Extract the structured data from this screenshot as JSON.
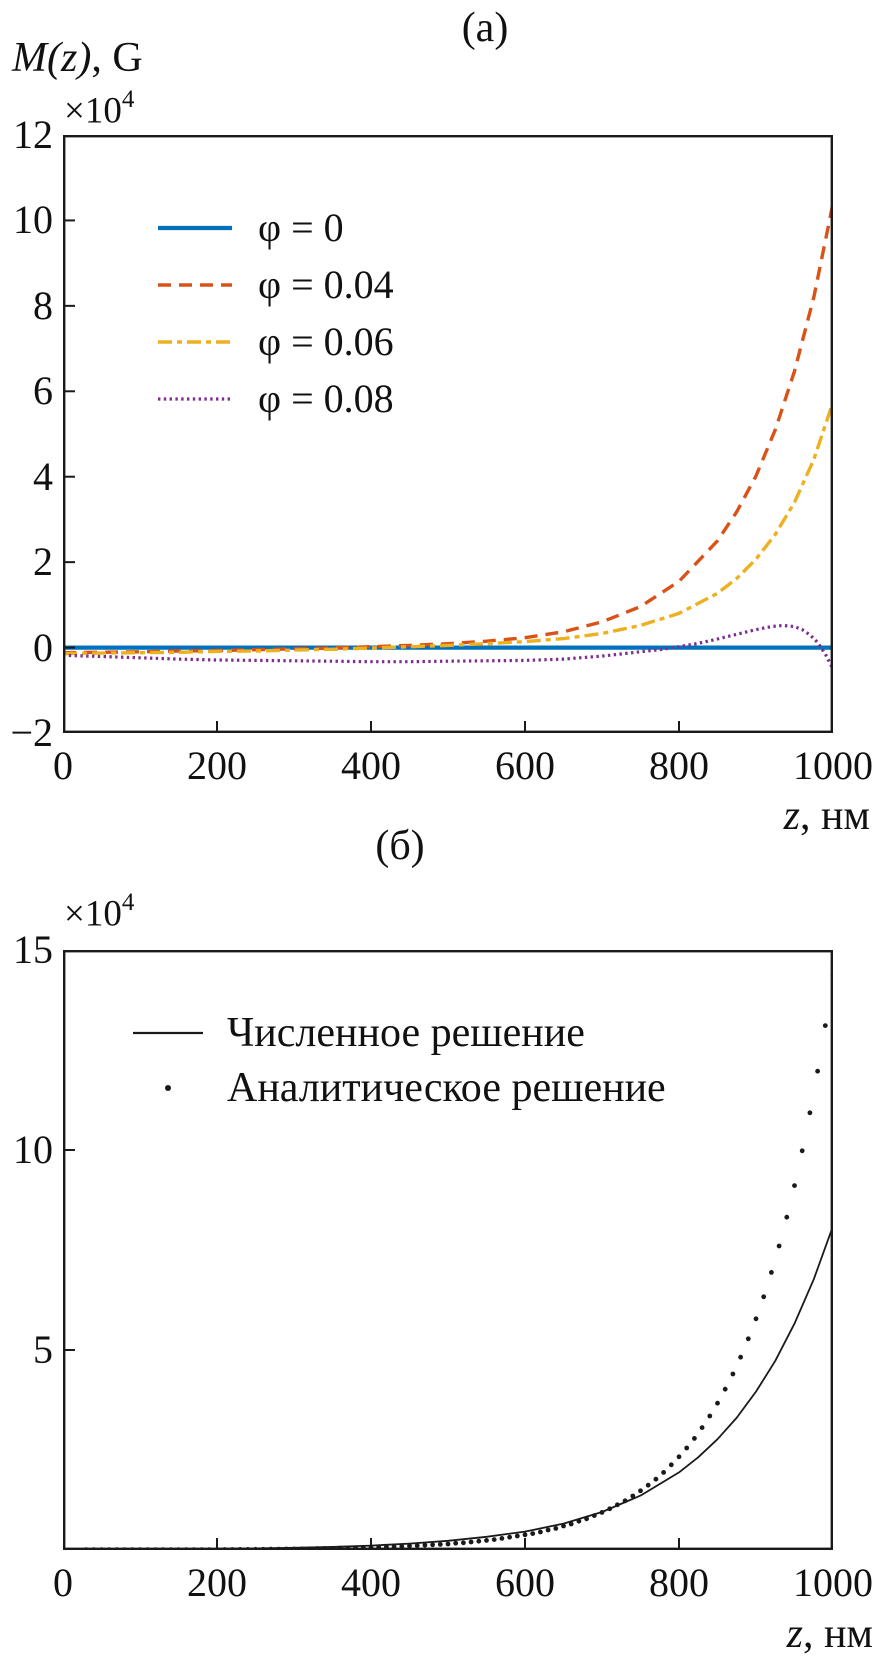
{
  "chart_data": [
    {
      "type": "line",
      "panel": "a",
      "title": "(a)",
      "ylabel": "M(z), G",
      "xlabel": "z, нм",
      "scale_label": "×10⁴",
      "labels": {
        "ylabel_var": "M(z)",
        "ylabel_unit": ", G",
        "xlabel_var": "z",
        "xlabel_unit": ", нм",
        "scale_base": "×10",
        "scale_exp": "4"
      },
      "xlim": [
        0,
        1000
      ],
      "ylim": [
        -2,
        12
      ],
      "xticks": [
        0,
        200,
        400,
        600,
        800,
        1000
      ],
      "yticks": [
        12,
        10,
        8,
        6,
        4,
        2,
        0,
        -2
      ],
      "grid": false,
      "legend_position": "upper left inside",
      "series": [
        {
          "name": "φ = 0",
          "color": "#0072BD",
          "line_style": "solid",
          "line_width": 4.2,
          "points": [
            [
              0,
              0
            ],
            [
              1000,
              0
            ]
          ]
        },
        {
          "name": "φ = 0.04",
          "color": "#D95319",
          "line_style": "dashed",
          "line_width": 3.4,
          "points": [
            [
              0,
              -0.12
            ],
            [
              50,
              -0.11
            ],
            [
              100,
              -0.1
            ],
            [
              150,
              -0.08
            ],
            [
              200,
              -0.07
            ],
            [
              250,
              -0.05
            ],
            [
              300,
              -0.03
            ],
            [
              350,
              -0.01
            ],
            [
              400,
              0.02
            ],
            [
              450,
              0.05
            ],
            [
              500,
              0.09
            ],
            [
              550,
              0.15
            ],
            [
              600,
              0.23
            ],
            [
              650,
              0.37
            ],
            [
              700,
              0.6
            ],
            [
              750,
              0.96
            ],
            [
              800,
              1.55
            ],
            [
              850,
              2.5
            ],
            [
              875,
              3.18
            ],
            [
              900,
              4.02
            ],
            [
              925,
              5.1
            ],
            [
              950,
              6.47
            ],
            [
              975,
              8.2
            ],
            [
              1000,
              10.4
            ]
          ]
        },
        {
          "name": "φ = 0.06",
          "color": "#EDB120",
          "line_style": "dashdot",
          "line_width": 3.4,
          "points": [
            [
              0,
              -0.14
            ],
            [
              50,
              -0.13
            ],
            [
              100,
              -0.12
            ],
            [
              150,
              -0.11
            ],
            [
              200,
              -0.09
            ],
            [
              250,
              -0.08
            ],
            [
              300,
              -0.06
            ],
            [
              350,
              -0.04
            ],
            [
              400,
              -0.01
            ],
            [
              450,
              0.02
            ],
            [
              500,
              0.05
            ],
            [
              550,
              0.09
            ],
            [
              600,
              0.14
            ],
            [
              650,
              0.21
            ],
            [
              700,
              0.33
            ],
            [
              750,
              0.52
            ],
            [
              800,
              0.8
            ],
            [
              850,
              1.27
            ],
            [
              875,
              1.62
            ],
            [
              900,
              2.07
            ],
            [
              925,
              2.65
            ],
            [
              950,
              3.4
            ],
            [
              975,
              4.4
            ],
            [
              1000,
              5.75
            ]
          ]
        },
        {
          "name": "φ = 0.08",
          "color": "#7E2F8E",
          "line_style": "dotted",
          "line_width": 3.2,
          "points": [
            [
              0,
              -0.18
            ],
            [
              50,
              -0.21
            ],
            [
              100,
              -0.24
            ],
            [
              150,
              -0.27
            ],
            [
              200,
              -0.29
            ],
            [
              250,
              -0.3
            ],
            [
              300,
              -0.31
            ],
            [
              350,
              -0.32
            ],
            [
              400,
              -0.33
            ],
            [
              450,
              -0.33
            ],
            [
              500,
              -0.32
            ],
            [
              550,
              -0.31
            ],
            [
              600,
              -0.3
            ],
            [
              650,
              -0.27
            ],
            [
              700,
              -0.2
            ],
            [
              750,
              -0.1
            ],
            [
              775,
              -0.05
            ],
            [
              800,
              0.02
            ],
            [
              825,
              0.1
            ],
            [
              850,
              0.2
            ],
            [
              875,
              0.31
            ],
            [
              900,
              0.42
            ],
            [
              920,
              0.49
            ],
            [
              935,
              0.52
            ],
            [
              950,
              0.49
            ],
            [
              960,
              0.42
            ],
            [
              970,
              0.3
            ],
            [
              980,
              0.12
            ],
            [
              990,
              -0.15
            ],
            [
              1000,
              -0.5
            ]
          ]
        }
      ]
    },
    {
      "type": "line+scatter",
      "panel": "б",
      "title": "(б)",
      "ylabel": "",
      "xlabel": "z, нм",
      "scale_label": "×10⁴",
      "labels": {
        "xlabel_var": "z",
        "xlabel_unit": ", нм",
        "scale_base": "×10",
        "scale_exp": "4"
      },
      "xlim": [
        0,
        1000
      ],
      "ylim": [
        0,
        15
      ],
      "xticks": [
        0,
        200,
        400,
        600,
        800,
        1000
      ],
      "yticks": [
        15,
        10,
        5
      ],
      "grid": false,
      "legend_position": "upper left inside",
      "series": [
        {
          "name": "Численное решение",
          "color": "#1a1a1a",
          "line_style": "solid",
          "line_width": 1.8,
          "points": [
            [
              0,
              0.006
            ],
            [
              50,
              0.009
            ],
            [
              100,
              0.013
            ],
            [
              150,
              0.019
            ],
            [
              200,
              0.027
            ],
            [
              250,
              0.039
            ],
            [
              300,
              0.055
            ],
            [
              350,
              0.078
            ],
            [
              400,
              0.11
            ],
            [
              450,
              0.16
            ],
            [
              500,
              0.23
            ],
            [
              550,
              0.33
            ],
            [
              600,
              0.46
            ],
            [
              650,
              0.66
            ],
            [
              700,
              0.95
            ],
            [
              750,
              1.36
            ],
            [
              800,
              1.94
            ],
            [
              825,
              2.32
            ],
            [
              850,
              2.77
            ],
            [
              875,
              3.31
            ],
            [
              900,
              3.96
            ],
            [
              925,
              4.73
            ],
            [
              950,
              5.66
            ],
            [
              975,
              6.77
            ],
            [
              1000,
              8.1
            ]
          ]
        },
        {
          "name": "Аналитическое решение",
          "color": "#1a1a1a",
          "line_style": "scatter",
          "marker_radius": 2.4,
          "points": [
            [
              30,
              0.01
            ],
            [
              40,
              0.01
            ],
            [
              50,
              0.01
            ],
            [
              60,
              0.01
            ],
            [
              70,
              0.01
            ],
            [
              80,
              0.01
            ],
            [
              90,
              0.01
            ],
            [
              100,
              0.01
            ],
            [
              110,
              0.01
            ],
            [
              120,
              0.01
            ],
            [
              130,
              0.01
            ],
            [
              140,
              0.01
            ],
            [
              150,
              0.01
            ],
            [
              160,
              0.01
            ],
            [
              170,
              0.01
            ],
            [
              180,
              0.01
            ],
            [
              190,
              0.01
            ],
            [
              200,
              0.011
            ],
            [
              210,
              0.012
            ],
            [
              220,
              0.013
            ],
            [
              230,
              0.014
            ],
            [
              240,
              0.015
            ],
            [
              250,
              0.017
            ],
            [
              260,
              0.018
            ],
            [
              270,
              0.02
            ],
            [
              280,
              0.022
            ],
            [
              290,
              0.024
            ],
            [
              300,
              0.026
            ],
            [
              310,
              0.028
            ],
            [
              320,
              0.031
            ],
            [
              330,
              0.034
            ],
            [
              340,
              0.037
            ],
            [
              350,
              0.04
            ],
            [
              360,
              0.044
            ],
            [
              370,
              0.048
            ],
            [
              380,
              0.053
            ],
            [
              390,
              0.058
            ],
            [
              400,
              0.063
            ],
            [
              410,
              0.069
            ],
            [
              420,
              0.076
            ],
            [
              430,
              0.08
            ],
            [
              440,
              0.09
            ],
            [
              450,
              0.1
            ],
            [
              460,
              0.11
            ],
            [
              470,
              0.12
            ],
            [
              480,
              0.13
            ],
            [
              490,
              0.14
            ],
            [
              500,
              0.15
            ],
            [
              510,
              0.17
            ],
            [
              520,
              0.18
            ],
            [
              530,
              0.2
            ],
            [
              540,
              0.22
            ],
            [
              550,
              0.24
            ],
            [
              560,
              0.26
            ],
            [
              570,
              0.29
            ],
            [
              580,
              0.32
            ],
            [
              590,
              0.35
            ],
            [
              600,
              0.38
            ],
            [
              610,
              0.41
            ],
            [
              620,
              0.45
            ],
            [
              630,
              0.5
            ],
            [
              640,
              0.54
            ],
            [
              650,
              0.6
            ],
            [
              660,
              0.65
            ],
            [
              670,
              0.72
            ],
            [
              680,
              0.78
            ],
            [
              690,
              0.86
            ],
            [
              700,
              0.94
            ],
            [
              710,
              1.03
            ],
            [
              720,
              1.13
            ],
            [
              730,
              1.23
            ],
            [
              740,
              1.35
            ],
            [
              750,
              1.48
            ],
            [
              760,
              1.62
            ],
            [
              770,
              1.77
            ],
            [
              780,
              1.94
            ],
            [
              790,
              2.13
            ],
            [
              800,
              2.33
            ],
            [
              810,
              2.55
            ],
            [
              820,
              2.79
            ],
            [
              830,
              3.06
            ],
            [
              840,
              3.35
            ],
            [
              850,
              3.67
            ],
            [
              860,
              4.02
            ],
            [
              870,
              4.4
            ],
            [
              880,
              4.82
            ],
            [
              890,
              5.28
            ],
            [
              900,
              5.78
            ],
            [
              910,
              6.33
            ],
            [
              920,
              6.94
            ],
            [
              930,
              7.6
            ],
            [
              940,
              8.32
            ],
            [
              950,
              9.11
            ],
            [
              960,
              9.98
            ],
            [
              970,
              10.93
            ],
            [
              980,
              11.97
            ],
            [
              990,
              13.11
            ],
            [
              1000,
              14.36
            ]
          ]
        }
      ]
    }
  ]
}
